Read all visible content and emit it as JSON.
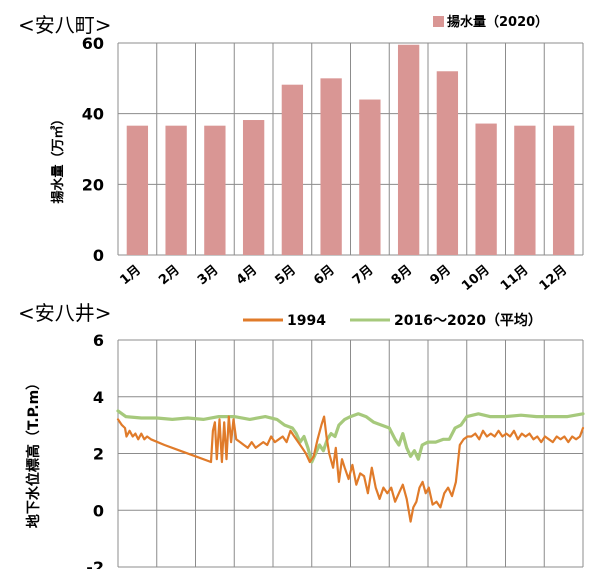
{
  "chart_data": [
    {
      "type": "bar",
      "title": "<安八町>",
      "ylabel": "揚水量（万㎥）",
      "xlabel": "",
      "ylim": [
        0,
        60
      ],
      "yticks": [
        "0",
        "20",
        "40",
        "60"
      ],
      "categories": [
        "1月",
        "2月",
        "3月",
        "4月",
        "5月",
        "6月",
        "7月",
        "8月",
        "9月",
        "10月",
        "11月",
        "12月"
      ],
      "series": [
        {
          "name": "揚水量（2020）",
          "color": "#d99694",
          "values": [
            36.6,
            36.6,
            36.6,
            38.2,
            48.2,
            50.0,
            44.0,
            59.5,
            52.0,
            37.2,
            36.6,
            36.6
          ]
        }
      ],
      "grid": true,
      "legend": "top-right"
    },
    {
      "type": "line",
      "title": "<安八井>",
      "ylabel": "地下水位標高（T.P.m）",
      "xlabel": "",
      "xlim": [
        0,
        12
      ],
      "ylim": [
        -2,
        6
      ],
      "yticks": [
        "-2",
        "0",
        "2",
        "4",
        "6"
      ],
      "series": [
        {
          "name": "1994",
          "color": "#e07b2a",
          "points": [
            [
              0.0,
              3.2
            ],
            [
              0.1,
              3.0
            ],
            [
              0.18,
              2.9
            ],
            [
              0.22,
              2.6
            ],
            [
              0.3,
              2.8
            ],
            [
              0.38,
              2.6
            ],
            [
              0.45,
              2.7
            ],
            [
              0.52,
              2.5
            ],
            [
              0.6,
              2.7
            ],
            [
              0.68,
              2.5
            ],
            [
              0.75,
              2.6
            ],
            [
              0.85,
              2.5
            ],
            [
              1.2,
              2.3
            ],
            [
              1.6,
              2.1
            ],
            [
              2.0,
              1.9
            ],
            [
              2.4,
              1.7
            ],
            [
              2.45,
              2.8
            ],
            [
              2.5,
              3.1
            ],
            [
              2.55,
              1.8
            ],
            [
              2.62,
              3.2
            ],
            [
              2.68,
              1.7
            ],
            [
              2.74,
              3.1
            ],
            [
              2.8,
              1.8
            ],
            [
              2.86,
              3.3
            ],
            [
              2.92,
              2.4
            ],
            [
              2.98,
              3.2
            ],
            [
              3.05,
              2.5
            ],
            [
              3.15,
              2.4
            ],
            [
              3.25,
              2.3
            ],
            [
              3.35,
              2.2
            ],
            [
              3.45,
              2.4
            ],
            [
              3.55,
              2.2
            ],
            [
              3.65,
              2.3
            ],
            [
              3.75,
              2.4
            ],
            [
              3.85,
              2.3
            ],
            [
              3.95,
              2.6
            ],
            [
              4.05,
              2.4
            ],
            [
              4.15,
              2.5
            ],
            [
              4.25,
              2.6
            ],
            [
              4.35,
              2.4
            ],
            [
              4.45,
              2.8
            ],
            [
              4.55,
              2.6
            ],
            [
              4.65,
              2.4
            ],
            [
              4.75,
              2.2
            ],
            [
              4.85,
              2.0
            ],
            [
              4.95,
              1.7
            ],
            [
              5.05,
              1.9
            ],
            [
              5.15,
              2.5
            ],
            [
              5.25,
              3.0
            ],
            [
              5.32,
              3.3
            ],
            [
              5.38,
              2.6
            ],
            [
              5.45,
              2.0
            ],
            [
              5.55,
              1.5
            ],
            [
              5.62,
              2.2
            ],
            [
              5.7,
              1.0
            ],
            [
              5.78,
              1.8
            ],
            [
              5.85,
              1.5
            ],
            [
              5.95,
              1.1
            ],
            [
              6.05,
              1.6
            ],
            [
              6.15,
              0.9
            ],
            [
              6.25,
              1.3
            ],
            [
              6.35,
              1.2
            ],
            [
              6.45,
              0.6
            ],
            [
              6.55,
              1.5
            ],
            [
              6.65,
              0.8
            ],
            [
              6.75,
              0.4
            ],
            [
              6.85,
              0.8
            ],
            [
              6.95,
              0.6
            ],
            [
              7.05,
              0.8
            ],
            [
              7.15,
              0.3
            ],
            [
              7.25,
              0.6
            ],
            [
              7.35,
              0.9
            ],
            [
              7.45,
              0.4
            ],
            [
              7.55,
              -0.4
            ],
            [
              7.62,
              0.1
            ],
            [
              7.7,
              0.3
            ],
            [
              7.78,
              0.8
            ],
            [
              7.86,
              1.0
            ],
            [
              7.94,
              0.6
            ],
            [
              8.02,
              0.8
            ],
            [
              8.12,
              0.2
            ],
            [
              8.22,
              0.3
            ],
            [
              8.32,
              0.1
            ],
            [
              8.42,
              0.6
            ],
            [
              8.52,
              0.8
            ],
            [
              8.62,
              0.5
            ],
            [
              8.72,
              1.0
            ],
            [
              8.82,
              2.3
            ],
            [
              8.92,
              2.5
            ],
            [
              9.02,
              2.6
            ],
            [
              9.12,
              2.6
            ],
            [
              9.22,
              2.7
            ],
            [
              9.32,
              2.5
            ],
            [
              9.42,
              2.8
            ],
            [
              9.52,
              2.6
            ],
            [
              9.62,
              2.7
            ],
            [
              9.72,
              2.6
            ],
            [
              9.82,
              2.8
            ],
            [
              9.92,
              2.6
            ],
            [
              10.02,
              2.7
            ],
            [
              10.12,
              2.6
            ],
            [
              10.22,
              2.8
            ],
            [
              10.32,
              2.5
            ],
            [
              10.42,
              2.7
            ],
            [
              10.52,
              2.6
            ],
            [
              10.62,
              2.7
            ],
            [
              10.72,
              2.5
            ],
            [
              10.82,
              2.6
            ],
            [
              10.92,
              2.4
            ],
            [
              11.02,
              2.6
            ],
            [
              11.12,
              2.5
            ],
            [
              11.22,
              2.4
            ],
            [
              11.32,
              2.6
            ],
            [
              11.42,
              2.5
            ],
            [
              11.52,
              2.6
            ],
            [
              11.62,
              2.4
            ],
            [
              11.72,
              2.6
            ],
            [
              11.82,
              2.5
            ],
            [
              11.92,
              2.6
            ],
            [
              12.0,
              2.9
            ]
          ]
        },
        {
          "name": "2016～2020（平均）",
          "color": "#a6c97c",
          "points": [
            [
              0.0,
              3.5
            ],
            [
              0.2,
              3.3
            ],
            [
              0.6,
              3.25
            ],
            [
              1.0,
              3.25
            ],
            [
              1.4,
              3.2
            ],
            [
              1.8,
              3.25
            ],
            [
              2.2,
              3.2
            ],
            [
              2.6,
              3.3
            ],
            [
              3.0,
              3.3
            ],
            [
              3.4,
              3.2
            ],
            [
              3.8,
              3.3
            ],
            [
              4.1,
              3.2
            ],
            [
              4.3,
              3.0
            ],
            [
              4.5,
              2.9
            ],
            [
              4.6,
              2.7
            ],
            [
              4.7,
              2.4
            ],
            [
              4.8,
              2.6
            ],
            [
              4.9,
              2.2
            ],
            [
              5.0,
              1.7
            ],
            [
              5.1,
              2.0
            ],
            [
              5.2,
              2.3
            ],
            [
              5.3,
              2.1
            ],
            [
              5.4,
              2.5
            ],
            [
              5.5,
              2.7
            ],
            [
              5.6,
              2.6
            ],
            [
              5.7,
              3.0
            ],
            [
              5.85,
              3.2
            ],
            [
              6.0,
              3.3
            ],
            [
              6.2,
              3.4
            ],
            [
              6.4,
              3.3
            ],
            [
              6.6,
              3.1
            ],
            [
              6.8,
              3.0
            ],
            [
              7.0,
              2.9
            ],
            [
              7.15,
              2.5
            ],
            [
              7.25,
              2.3
            ],
            [
              7.35,
              2.7
            ],
            [
              7.45,
              2.2
            ],
            [
              7.55,
              1.9
            ],
            [
              7.65,
              2.1
            ],
            [
              7.75,
              1.8
            ],
            [
              7.85,
              2.3
            ],
            [
              8.0,
              2.4
            ],
            [
              8.2,
              2.4
            ],
            [
              8.4,
              2.5
            ],
            [
              8.55,
              2.5
            ],
            [
              8.7,
              2.9
            ],
            [
              8.85,
              3.0
            ],
            [
              9.0,
              3.3
            ],
            [
              9.3,
              3.4
            ],
            [
              9.6,
              3.3
            ],
            [
              10.0,
              3.3
            ],
            [
              10.4,
              3.35
            ],
            [
              10.8,
              3.3
            ],
            [
              11.2,
              3.3
            ],
            [
              11.6,
              3.3
            ],
            [
              12.0,
              3.4
            ]
          ]
        }
      ],
      "grid": true,
      "legend": "top"
    }
  ]
}
